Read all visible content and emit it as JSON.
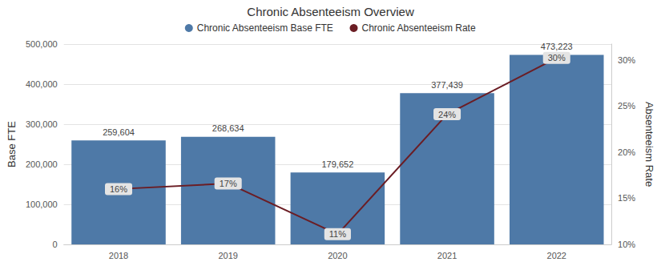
{
  "chart_data": {
    "type": "bar",
    "title": "Chronic Absenteeism Overview",
    "categories": [
      "2018",
      "2019",
      "2020",
      "2021",
      "2022"
    ],
    "series": [
      {
        "name": "Chronic Absenteeism Base FTE",
        "type": "bar",
        "color": "#4e79a7",
        "axis": "y",
        "values": [
          259604,
          268634,
          179652,
          377439,
          473223
        ],
        "value_labels": [
          "259,604",
          "268,634",
          "179,652",
          "377,439",
          "473,223"
        ]
      },
      {
        "name": "Chronic Absenteeism Rate",
        "type": "line",
        "color": "#6b1d24",
        "axis": "y2",
        "values": [
          16,
          16.6,
          11.1,
          24.1,
          30.2
        ],
        "value_labels": [
          "16%",
          "17%",
          "11%",
          "24%",
          "30%"
        ]
      }
    ],
    "y_label": "Base FTE",
    "y2_label": "Absenteeism Rate",
    "ylim": [
      0,
      500000
    ],
    "yticks": [
      0,
      {
        "value": 100000,
        "label": "100,000"
      },
      {
        "value": 200000,
        "label": "200,000"
      },
      {
        "value": 300000,
        "label": "300,000"
      },
      {
        "value": 400000,
        "label": "400,000"
      },
      {
        "value": 500000,
        "label": "500,000"
      }
    ],
    "y2lim": [
      10,
      31.7
    ],
    "y2ticks": [
      {
        "value": 10,
        "label": "10%"
      },
      {
        "value": 15,
        "label": "15%"
      },
      {
        "value": 20,
        "label": "20%"
      },
      {
        "value": 25,
        "label": "25%"
      },
      {
        "value": 30,
        "label": "30%"
      }
    ],
    "grid": true,
    "legend": "top",
    "data_labels": true
  }
}
